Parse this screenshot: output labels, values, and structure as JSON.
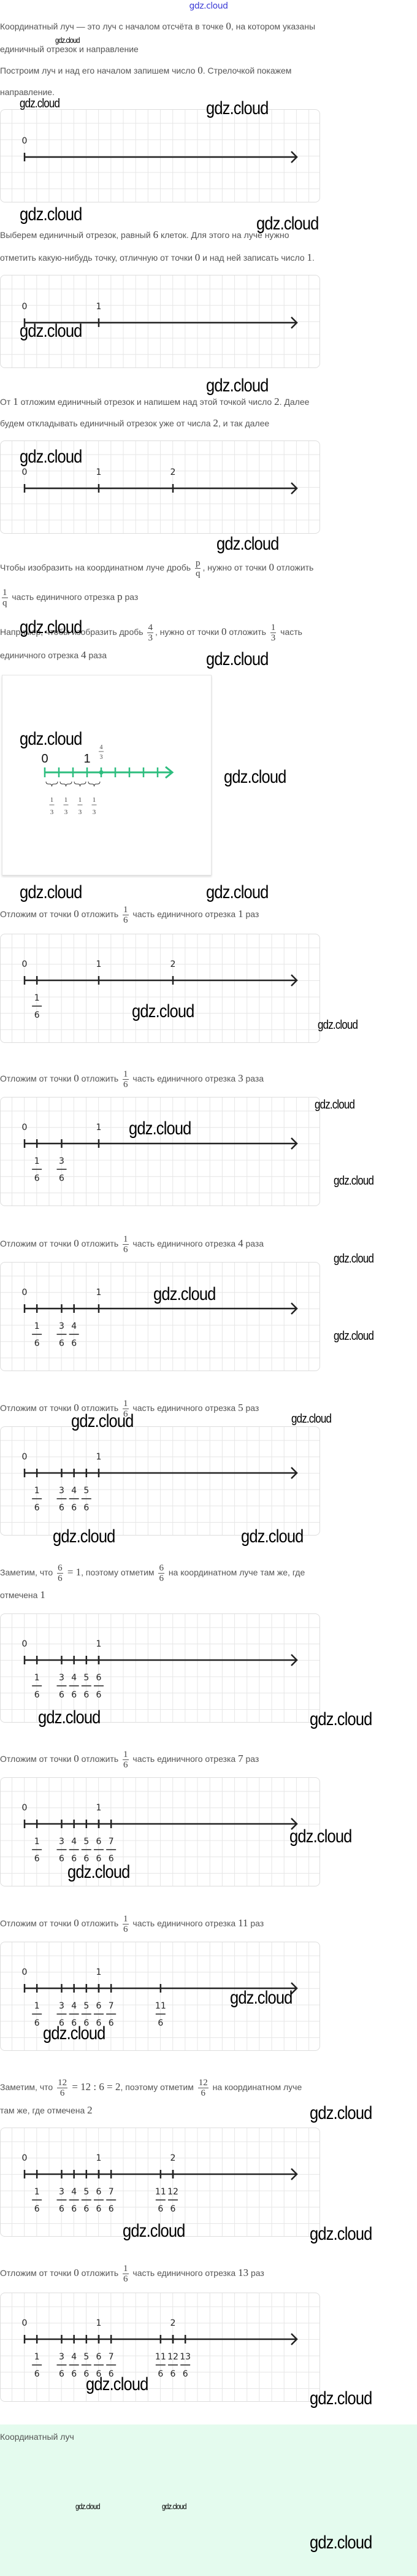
{
  "header": {
    "brand": "gdz.cloud"
  },
  "watermark": "gdz.cloud",
  "colors": {
    "accent_green": "#2dbd7e",
    "section_bg": "#e4fbee",
    "brand_blue": "#3b3bd6"
  },
  "paragraphs": [
    {
      "lines": [
        [
          {
            "t": "Координатный луч — это луч с началом отсчёта в точке "
          },
          {
            "m": "0"
          },
          {
            "t": ", на котором указаны"
          }
        ],
        [
          {
            "t": "единичный отрезок и направление"
          }
        ]
      ]
    },
    {
      "lines": [
        [
          {
            "t": "Построим луч и над его началом запишем число "
          },
          {
            "m": "0"
          },
          {
            "t": ". Стрелочкой покажем"
          }
        ],
        [
          {
            "t": "направление."
          }
        ]
      ]
    },
    {
      "lines": [
        [
          {
            "t": "Выберем единичный отрезок, равный "
          },
          {
            "m": "6"
          },
          {
            "t": " клеток. Для этого на луче нужно"
          }
        ],
        [
          {
            "t": "отметить какую-нибудь точку, отличную от точки "
          },
          {
            "m": "0"
          },
          {
            "t": " и над ней записать число "
          },
          {
            "m": "1"
          },
          {
            "t": "."
          }
        ]
      ]
    },
    {
      "lines": [
        [
          {
            "t": "От "
          },
          {
            "m": "1"
          },
          {
            "t": " отложим единичный отрезок и напишем над этой точкой число "
          },
          {
            "m": "2"
          },
          {
            "t": ". Далее"
          }
        ],
        [
          {
            "t": "будем откладывать единичный отрезок уже от числа "
          },
          {
            "m": "2"
          },
          {
            "t": ", и так далее"
          }
        ]
      ]
    },
    {
      "lines": [
        [
          {
            "t": "Чтобы изобразить на координатном луче дробь "
          },
          {
            "n": "p",
            "d": "q"
          },
          {
            "t": ", нужно от точки "
          },
          {
            "m": "0"
          },
          {
            "t": " отложить"
          }
        ],
        [
          {
            "n": "1",
            "d": "q"
          },
          {
            "t": " часть единичного отрезка "
          },
          {
            "m": "p"
          },
          {
            "t": " раз"
          }
        ]
      ]
    },
    {
      "lines": [
        [
          {
            "t": "Например, чтобы изобразить дробь "
          },
          {
            "n": "4",
            "d": "3"
          },
          {
            "t": ", нужно от точки "
          },
          {
            "m": "0"
          },
          {
            "t": " отложить "
          },
          {
            "n": "1",
            "d": "3"
          },
          {
            "t": " часть"
          }
        ],
        [
          {
            "t": "единичного отрезка "
          },
          {
            "m": "4"
          },
          {
            "t": " раза"
          }
        ]
      ]
    },
    {
      "lines": [
        [
          {
            "t": "Отложим от точки "
          },
          {
            "m": "0"
          },
          {
            "t": " отложить "
          },
          {
            "n": "1",
            "d": "6"
          },
          {
            "t": " часть единичного отрезка "
          },
          {
            "m": "1"
          },
          {
            "t": " раз"
          }
        ]
      ]
    },
    {
      "lines": [
        [
          {
            "t": "Отложим от точки "
          },
          {
            "m": "0"
          },
          {
            "t": " отложить "
          },
          {
            "n": "1",
            "d": "6"
          },
          {
            "t": " часть единичного отрезка "
          },
          {
            "m": "3"
          },
          {
            "t": " раза"
          }
        ]
      ]
    },
    {
      "lines": [
        [
          {
            "t": "Отложим от точки "
          },
          {
            "m": "0"
          },
          {
            "t": " отложить "
          },
          {
            "n": "1",
            "d": "6"
          },
          {
            "t": " часть единичного отрезка "
          },
          {
            "m": "4"
          },
          {
            "t": " раза"
          }
        ]
      ]
    },
    {
      "lines": [
        [
          {
            "t": "Отложим от точки "
          },
          {
            "m": "0"
          },
          {
            "t": " отложить "
          },
          {
            "n": "1",
            "d": "6"
          },
          {
            "t": " часть единичного отрезка "
          },
          {
            "m": "5"
          },
          {
            "t": " раз"
          }
        ]
      ]
    },
    {
      "lines": [
        [
          {
            "t": "Заметим, что "
          },
          {
            "n": "6",
            "d": "6"
          },
          {
            "m": " = 1"
          },
          {
            "t": ", поэтому отметим "
          },
          {
            "n": "6",
            "d": "6"
          },
          {
            "t": " на координатном луче там же, где"
          }
        ],
        [
          {
            "t": "отмечена "
          },
          {
            "m": "1"
          }
        ]
      ]
    },
    {
      "lines": [
        [
          {
            "t": "Отложим от точки "
          },
          {
            "m": "0"
          },
          {
            "t": " отложить "
          },
          {
            "n": "1",
            "d": "6"
          },
          {
            "t": " часть единичного отрезка "
          },
          {
            "m": "7"
          },
          {
            "t": " раз"
          }
        ]
      ]
    },
    {
      "lines": [
        [
          {
            "t": "Отложим от точки "
          },
          {
            "m": "0"
          },
          {
            "t": " отложить "
          },
          {
            "n": "1",
            "d": "6"
          },
          {
            "t": " часть единичного отрезка "
          },
          {
            "m": "11"
          },
          {
            "t": " раз"
          }
        ]
      ]
    },
    {
      "lines": [
        [
          {
            "t": "Заметим, что "
          },
          {
            "n": "12",
            "d": "6"
          },
          {
            "m": " = 12 : 6 = 2"
          },
          {
            "t": ", поэтому отметим "
          },
          {
            "n": "12",
            "d": "6"
          },
          {
            "t": " на координатном луче"
          }
        ],
        [
          {
            "t": "там же, где отмечена "
          },
          {
            "m": "2"
          }
        ]
      ]
    },
    {
      "lines": [
        [
          {
            "t": "Отложим от точки "
          },
          {
            "m": "0"
          },
          {
            "t": " отложить "
          },
          {
            "n": "1",
            "d": "6"
          },
          {
            "t": " часть единичного отрезка "
          },
          {
            "m": "13"
          },
          {
            "t": " раз"
          }
        ]
      ]
    }
  ],
  "number_lines": [
    {
      "integers": [
        0
      ],
      "fractions": [],
      "denominator": 6
    },
    {
      "integers": [
        0,
        1
      ],
      "fractions": [],
      "denominator": 6
    },
    {
      "integers": [
        0,
        1,
        2
      ],
      "fractions": [],
      "denominator": 6
    },
    {
      "integers": [
        0,
        1,
        2
      ],
      "fractions": [
        1
      ],
      "denominator": 6
    },
    {
      "integers": [
        0,
        1
      ],
      "fractions": [
        1,
        3
      ],
      "denominator": 6
    },
    {
      "integers": [
        0,
        1
      ],
      "fractions": [
        1,
        3,
        4
      ],
      "denominator": 6
    },
    {
      "integers": [
        0,
        1
      ],
      "fractions": [
        1,
        3,
        4,
        5
      ],
      "denominator": 6
    },
    {
      "integers": [
        0,
        1
      ],
      "fractions": [
        1,
        3,
        4,
        5,
        6
      ],
      "denominator": 6
    },
    {
      "integers": [
        0,
        1
      ],
      "fractions": [
        1,
        3,
        4,
        5,
        6,
        7
      ],
      "denominator": 6
    },
    {
      "integers": [
        0,
        1
      ],
      "fractions": [
        1,
        3,
        4,
        5,
        6,
        7,
        11
      ],
      "denominator": 6
    },
    {
      "integers": [
        0,
        1,
        2
      ],
      "fractions": [
        1,
        3,
        4,
        5,
        6,
        7,
        11,
        12
      ],
      "denominator": 6
    },
    {
      "integers": [
        0,
        1,
        2
      ],
      "fractions": [
        1,
        3,
        4,
        5,
        6,
        7,
        11,
        12,
        13
      ],
      "denominator": 6
    },
    {
      "integers": [
        0,
        1,
        2
      ],
      "fractions": [
        1,
        3,
        4,
        5,
        6,
        7,
        11,
        12,
        13
      ],
      "denominator": 6
    }
  ],
  "demo": {
    "integers": [
      "0",
      "1"
    ],
    "point": {
      "num": "4",
      "den": "3"
    },
    "parts": [
      {
        "num": "1",
        "den": "3"
      },
      {
        "num": "1",
        "den": "3"
      },
      {
        "num": "1",
        "den": "3"
      },
      {
        "num": "1",
        "den": "3"
      }
    ],
    "divisions_per_unit": 3,
    "ticks_shown": 9
  },
  "summary": {
    "title": "Координатный луч"
  }
}
